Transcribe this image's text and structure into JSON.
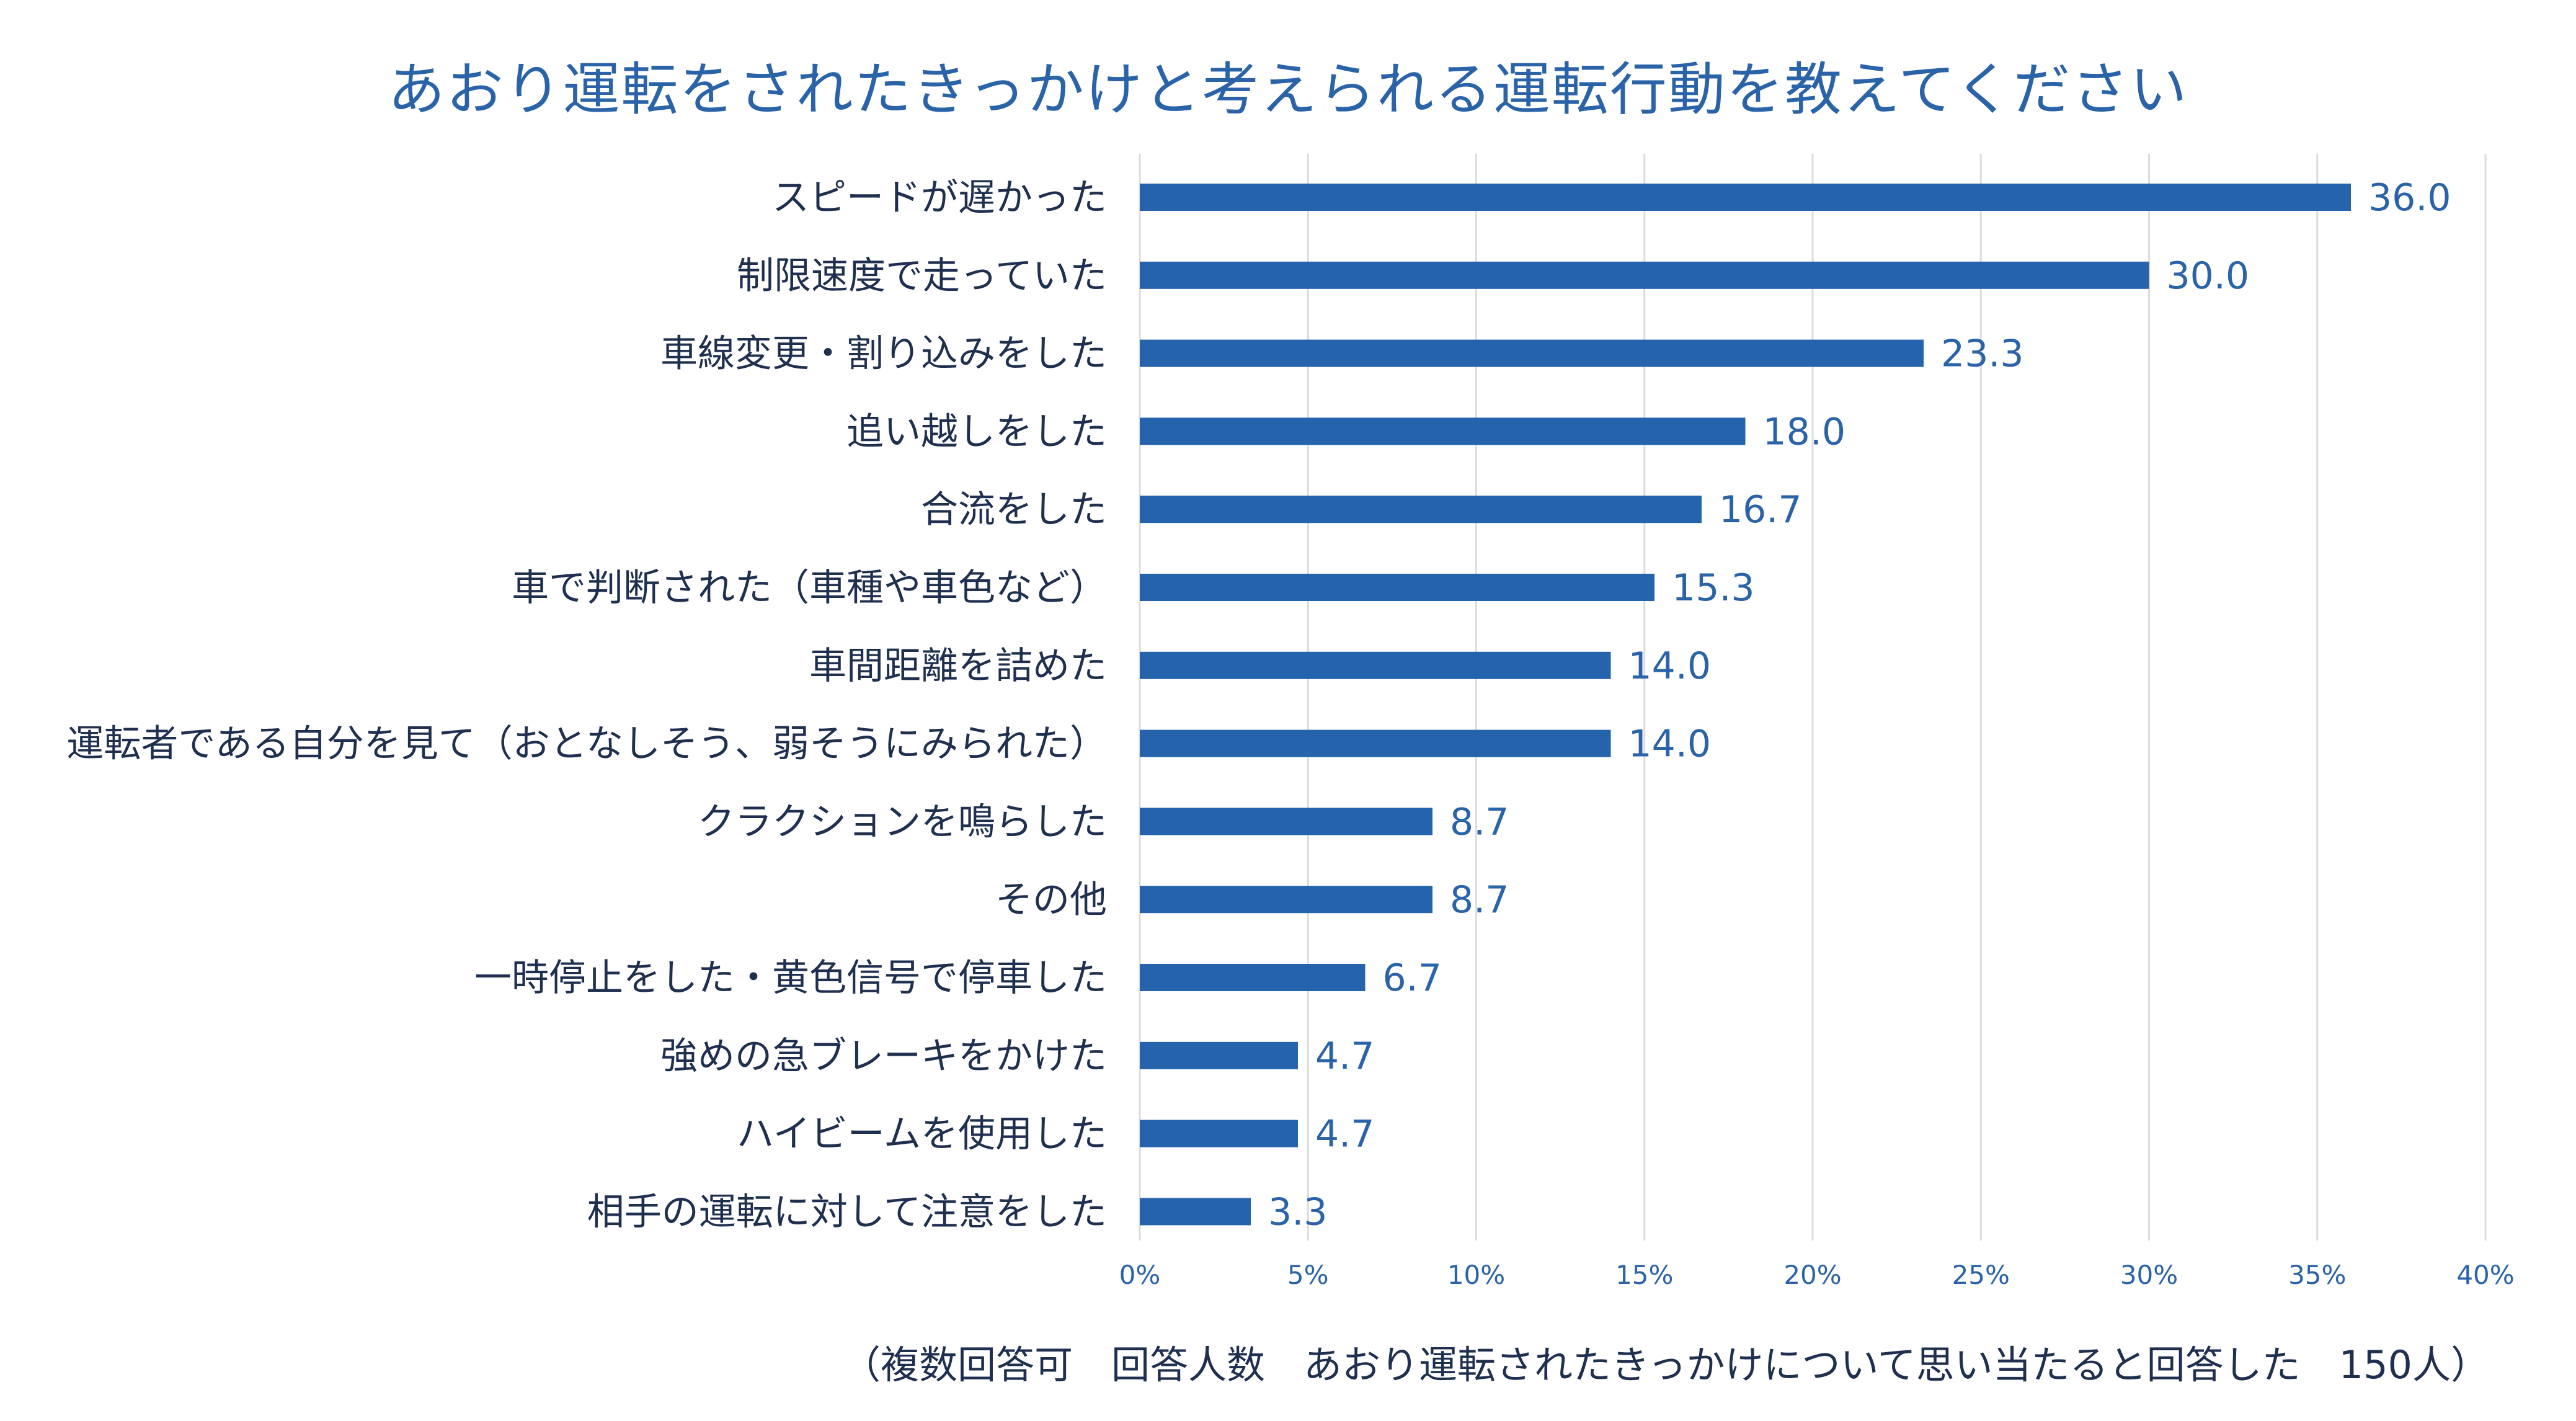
{
  "chart_data": {
    "type": "bar",
    "orientation": "horizontal",
    "title": "あおり運転をされたきっかけと考えられる運転行動を教えてください",
    "note": "（複数回答可　回答人数　あおり運転されたきっかけについて思い当たると回答した　150人）",
    "categories": [
      "スピードが遅かった",
      "制限速度で走っていた",
      "車線変更・割り込みをした",
      "追い越しをした",
      "合流をした",
      "車で判断された（車種や車色など）",
      "車間距離を詰めた",
      "運転者である自分を見て（おとなしそう、弱そうにみられた）",
      "クラクションを鳴らした",
      "その他",
      "一時停止をした・黄色信号で停車した",
      "強めの急ブレーキをかけた",
      "ハイビームを使用した",
      "相手の運転に対して注意をした"
    ],
    "values": [
      36.0,
      30.0,
      23.3,
      18.0,
      16.7,
      15.3,
      14.0,
      14.0,
      8.7,
      8.7,
      6.7,
      4.7,
      4.7,
      3.3
    ],
    "value_labels": [
      "36.0",
      "30.0",
      "23.3",
      "18.0",
      "16.7",
      "15.3",
      "14.0",
      "14.0",
      "8.7",
      "8.7",
      "6.7",
      "4.7",
      "4.7",
      "3.3"
    ],
    "xlim": [
      0,
      40
    ],
    "xticks": [
      0,
      5,
      10,
      15,
      20,
      25,
      30,
      35,
      40
    ],
    "xtick_labels": [
      "0%",
      "5%",
      "10%",
      "15%",
      "20%",
      "25%",
      "30%",
      "35%",
      "40%"
    ],
    "grid": true,
    "legend": "none",
    "colors": {
      "bar": "#2563ac",
      "grid": "#dcdcdc",
      "title": "#2a63a8",
      "label": "#1f2f4f",
      "value": "#2a63a8"
    }
  }
}
